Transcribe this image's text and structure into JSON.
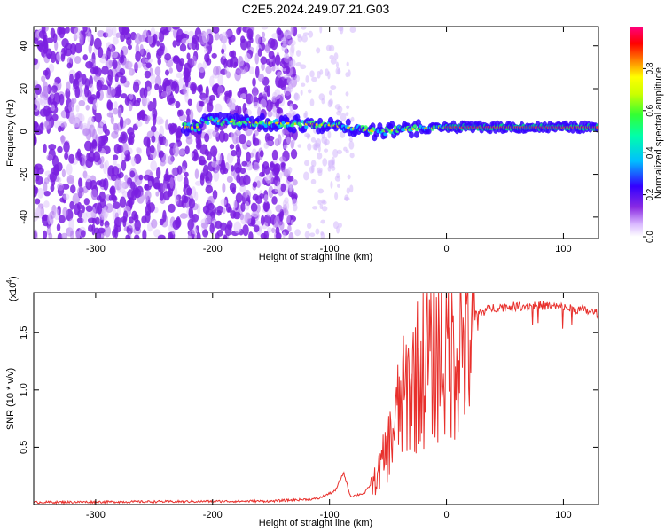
{
  "figure_title": "C2E5.2024.249.07.21.G03",
  "chart_data": [
    {
      "type": "heatmap",
      "xlabel": "Height of straight line (km)",
      "ylabel": "Frequency (Hz)",
      "xlim": [
        -353,
        130
      ],
      "ylim": [
        -50,
        49
      ],
      "x_ticks": [
        -300,
        -200,
        -100,
        0,
        100
      ],
      "x_tick_labels": [
        "-300",
        "-200",
        "-100",
        "0",
        "100"
      ],
      "y_ticks": [
        -40,
        -20,
        0,
        20,
        40
      ],
      "y_tick_labels": [
        "-40",
        "-20",
        "0",
        "20",
        "40"
      ],
      "colorbar": {
        "label": "Normalized spectral amplitude",
        "range": [
          0,
          1
        ],
        "ticks": [
          0,
          0.2,
          0.4,
          0.6,
          0.8
        ],
        "tick_labels": [
          "0.0",
          "0.2",
          "0.4",
          "0.6",
          "0.8"
        ],
        "colormap": [
          "#ffffff",
          "#8a2be2",
          "#3300ff",
          "#00bfff",
          "#00ff66",
          "#ffff00",
          "#ff8000",
          "#ff0000",
          "#ff0080"
        ]
      },
      "features": {
        "noise_region_x": [
          -353,
          -140
        ],
        "signal_band_center_hz": [
          [
            -210,
            5
          ],
          [
            -150,
            4
          ],
          [
            -100,
            3
          ],
          [
            -60,
            0
          ],
          [
            -30,
            1
          ],
          [
            0,
            2
          ],
          [
            60,
            2
          ],
          [
            130,
            2
          ]
        ],
        "strong_signal_start_x": 0
      }
    },
    {
      "type": "line",
      "xlabel": "Height of straight line (km)",
      "ylabel": "SNR (10 * v/v)",
      "y_multiplier_label": "(x10",
      "y_multiplier_exp": "4",
      "xlim": [
        -353,
        130
      ],
      "ylim": [
        0,
        1.85
      ],
      "x_ticks": [
        -300,
        -200,
        -100,
        0,
        100
      ],
      "x_tick_labels": [
        "-300",
        "-200",
        "-100",
        "0",
        "100"
      ],
      "y_ticks": [
        0.5,
        1.0,
        1.5
      ],
      "y_tick_labels": [
        "0.5",
        "1.0",
        "1.5"
      ],
      "line_color": "#e8302c",
      "series_envelope": {
        "x": [
          -353,
          -150,
          -110,
          -95,
          -88,
          -82,
          -70,
          -60,
          -50,
          -40,
          -30,
          -20,
          -10,
          0,
          10,
          20,
          30,
          40,
          60,
          80,
          100,
          115,
          130
        ],
        "y": [
          0.02,
          0.03,
          0.05,
          0.12,
          0.28,
          0.07,
          0.1,
          0.25,
          0.55,
          0.95,
          1.2,
          1.35,
          1.5,
          1.45,
          1.6,
          1.65,
          1.68,
          1.72,
          1.73,
          1.74,
          1.72,
          1.7,
          1.67
        ]
      }
    }
  ]
}
